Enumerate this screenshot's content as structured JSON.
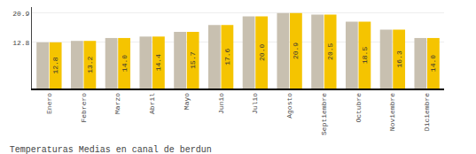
{
  "chart_data": {
    "type": "bar",
    "title": "Temperaturas Medias en canal de berdun",
    "categories": [
      "Enero",
      "Febrero",
      "Marzo",
      "Abril",
      "Mayo",
      "Junio",
      "Julio",
      "Agosto",
      "Septiembre",
      "Octubre",
      "Noviembre",
      "Diciembre"
    ],
    "series": [
      {
        "color": "#C8C0B0",
        "values": [
          12.8,
          13.2,
          14.0,
          14.4,
          15.7,
          17.6,
          20.0,
          20.9,
          20.5,
          18.5,
          16.3,
          14.0
        ]
      },
      {
        "color": "#F5C400",
        "values": [
          12.8,
          13.2,
          14.0,
          14.4,
          15.7,
          17.6,
          20.0,
          20.9,
          20.5,
          18.5,
          16.3,
          14.0
        ],
        "value_labels": [
          "12.8",
          "13.2",
          "14.0",
          "14.4",
          "15.7",
          "17.6",
          "20.0",
          "20.9",
          "20.5",
          "18.5",
          "16.3",
          "14.0"
        ]
      }
    ],
    "ylim": [
      0,
      22.572
    ],
    "yticks": [
      12.8,
      20.9
    ],
    "y2lim": [
      0,
      22.572
    ],
    "y2ticks": [
      12.8,
      20.9
    ],
    "grid": true,
    "data_labels": true
  }
}
